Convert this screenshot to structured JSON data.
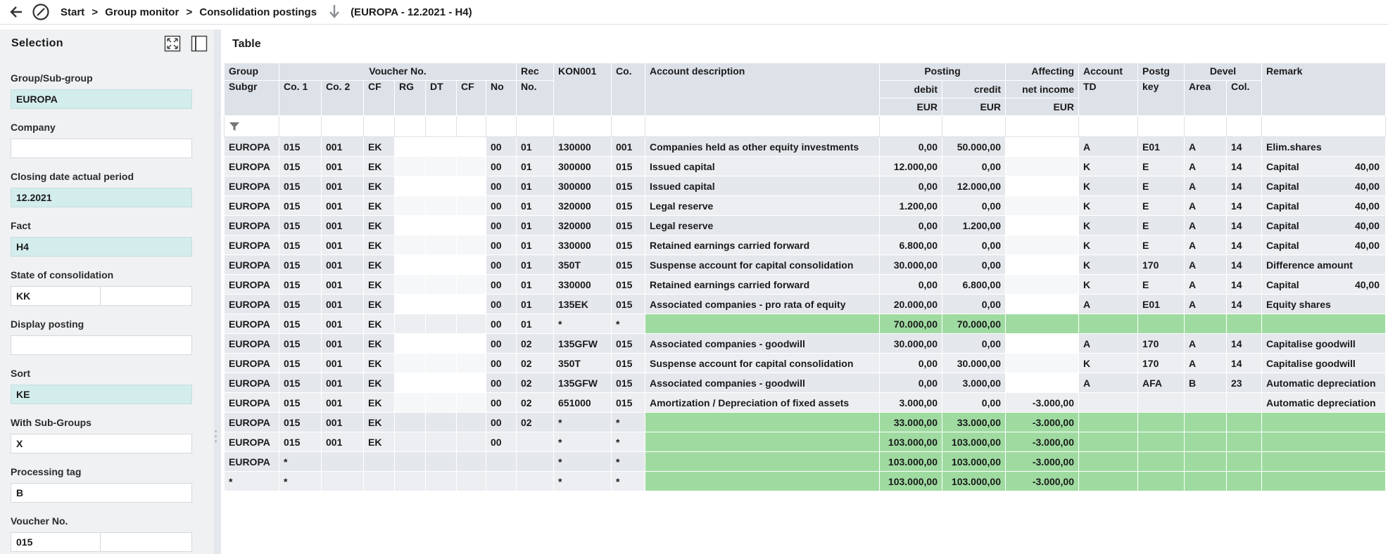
{
  "breadcrumb": {
    "items": [
      "Start",
      ">",
      "Group monitor",
      ">",
      "Consolidation postings"
    ],
    "context": "(EUROPA - 12.2021 - H4)"
  },
  "left_panel": {
    "title": "Selection",
    "fields": [
      {
        "label": "Group/Sub-group",
        "value": "EUROPA",
        "style": "teal"
      },
      {
        "label": "Company",
        "value": "",
        "style": "white"
      },
      {
        "label": "Closing date actual period",
        "value": "12.2021",
        "style": "teal"
      },
      {
        "label": "Fact",
        "value": "H4",
        "style": "teal"
      },
      {
        "label": "State of consolidation",
        "value": "KK",
        "value2": "",
        "style": "split"
      },
      {
        "label": "Display posting",
        "value": "",
        "style": "white"
      },
      {
        "label": "Sort",
        "value": "KE",
        "style": "teal"
      },
      {
        "label": "With Sub-Groups",
        "value": "X",
        "style": "white"
      },
      {
        "label": "Processing tag",
        "value": "B",
        "style": "white"
      },
      {
        "label": "Voucher No.",
        "value": "015",
        "value2": "",
        "style": "split"
      }
    ]
  },
  "main": {
    "title": "Table",
    "header": {
      "group": "Group",
      "subgr": "Subgr",
      "voucher": "Voucher No.",
      "co1": "Co. 1",
      "co2": "Co. 2",
      "cf1": "CF",
      "rg": "RG",
      "dt": "DT",
      "cf2": "CF",
      "no": "No",
      "rec": "Rec",
      "recno": "No.",
      "kon": "KON001",
      "co": "Co.",
      "desc": "Account description",
      "posting": "Posting",
      "debit": "debit",
      "credit": "credit",
      "eur1": "EUR",
      "eur2": "EUR",
      "affecting": "Affecting",
      "netincome": "net income",
      "eur3": "EUR",
      "account": "Account",
      "td": "TD",
      "postg": "Postg",
      "key": "key",
      "devel": "Devel",
      "area": "Area",
      "col": "Col.",
      "remark": "Remark"
    },
    "rows": [
      {
        "type": "d",
        "c": [
          "EUROPA",
          "015",
          "001",
          "EK",
          "",
          "",
          "",
          "00",
          "01",
          "130000",
          "001",
          "Companies held as other equity investments",
          "0,00",
          "50.000,00",
          "",
          "A",
          "E01",
          "A",
          "14",
          "Elim.shares",
          ""
        ]
      },
      {
        "type": "d",
        "c": [
          "EUROPA",
          "015",
          "001",
          "EK",
          "",
          "",
          "",
          "00",
          "01",
          "300000",
          "015",
          "Issued capital",
          "12.000,00",
          "0,00",
          "",
          "K",
          "E",
          "A",
          "14",
          "Capital",
          "40,00"
        ]
      },
      {
        "type": "d",
        "c": [
          "EUROPA",
          "015",
          "001",
          "EK",
          "",
          "",
          "",
          "00",
          "01",
          "300000",
          "015",
          "Issued capital",
          "0,00",
          "12.000,00",
          "",
          "K",
          "E",
          "A",
          "14",
          "Capital",
          "40,00"
        ]
      },
      {
        "type": "d",
        "c": [
          "EUROPA",
          "015",
          "001",
          "EK",
          "",
          "",
          "",
          "00",
          "01",
          "320000",
          "015",
          "Legal reserve",
          "1.200,00",
          "0,00",
          "",
          "K",
          "E",
          "A",
          "14",
          "Capital",
          "40,00"
        ]
      },
      {
        "type": "d",
        "c": [
          "EUROPA",
          "015",
          "001",
          "EK",
          "",
          "",
          "",
          "00",
          "01",
          "320000",
          "015",
          "Legal reserve",
          "0,00",
          "1.200,00",
          "",
          "K",
          "E",
          "A",
          "14",
          "Capital",
          "40,00"
        ]
      },
      {
        "type": "d",
        "c": [
          "EUROPA",
          "015",
          "001",
          "EK",
          "",
          "",
          "",
          "00",
          "01",
          "330000",
          "015",
          "Retained earnings carried forward",
          "6.800,00",
          "0,00",
          "",
          "K",
          "E",
          "A",
          "14",
          "Capital",
          "40,00"
        ]
      },
      {
        "type": "d",
        "c": [
          "EUROPA",
          "015",
          "001",
          "EK",
          "",
          "",
          "",
          "00",
          "01",
          "350T",
          "015",
          "Suspense account for capital consolidation",
          "30.000,00",
          "0,00",
          "",
          "K",
          "170",
          "A",
          "14",
          "Difference amount",
          ""
        ]
      },
      {
        "type": "d",
        "c": [
          "EUROPA",
          "015",
          "001",
          "EK",
          "",
          "",
          "",
          "00",
          "01",
          "330000",
          "015",
          "Retained earnings carried forward",
          "0,00",
          "6.800,00",
          "",
          "K",
          "E",
          "A",
          "14",
          "Capital",
          "40,00"
        ]
      },
      {
        "type": "d",
        "c": [
          "EUROPA",
          "015",
          "001",
          "EK",
          "",
          "",
          "",
          "00",
          "01",
          "135EK",
          "015",
          "Associated companies - pro rata of equity",
          "20.000,00",
          "0,00",
          "",
          "A",
          "E01",
          "A",
          "14",
          "Equity shares",
          ""
        ]
      },
      {
        "type": "s",
        "c": [
          "EUROPA",
          "015",
          "001",
          "EK",
          "",
          "",
          "",
          "00",
          "01",
          "*",
          "*",
          "",
          "70.000,00",
          "70.000,00",
          "",
          "",
          "",
          "",
          "",
          "",
          ""
        ]
      },
      {
        "type": "d",
        "c": [
          "EUROPA",
          "015",
          "001",
          "EK",
          "",
          "",
          "",
          "00",
          "02",
          "135GFW",
          "015",
          "Associated companies - goodwill",
          "30.000,00",
          "0,00",
          "",
          "A",
          "170",
          "A",
          "14",
          "Capitalise goodwill",
          ""
        ]
      },
      {
        "type": "d",
        "c": [
          "EUROPA",
          "015",
          "001",
          "EK",
          "",
          "",
          "",
          "00",
          "02",
          "350T",
          "015",
          "Suspense account for capital consolidation",
          "0,00",
          "30.000,00",
          "",
          "K",
          "170",
          "A",
          "14",
          "Capitalise goodwill",
          ""
        ]
      },
      {
        "type": "d",
        "c": [
          "EUROPA",
          "015",
          "001",
          "EK",
          "",
          "",
          "",
          "00",
          "02",
          "135GFW",
          "015",
          "Associated companies - goodwill",
          "0,00",
          "3.000,00",
          "",
          "A",
          "AFA",
          "B",
          "23",
          "Automatic depreciation",
          ""
        ]
      },
      {
        "type": "d",
        "c": [
          "EUROPA",
          "015",
          "001",
          "EK",
          "",
          "",
          "",
          "00",
          "02",
          "651000",
          "015",
          "Amortization / Depreciation of fixed assets",
          "3.000,00",
          "0,00",
          "-3.000,00",
          "",
          "",
          "",
          "",
          "Automatic depreciation",
          ""
        ]
      },
      {
        "type": "s",
        "c": [
          "EUROPA",
          "015",
          "001",
          "EK",
          "",
          "",
          "",
          "00",
          "02",
          "*",
          "*",
          "",
          "33.000,00",
          "33.000,00",
          "-3.000,00",
          "",
          "",
          "",
          "",
          "",
          ""
        ]
      },
      {
        "type": "s",
        "c": [
          "EUROPA",
          "015",
          "001",
          "EK",
          "",
          "",
          "",
          "00",
          "",
          "*",
          "*",
          "",
          "103.000,00",
          "103.000,00",
          "-3.000,00",
          "",
          "",
          "",
          "",
          "",
          ""
        ]
      },
      {
        "type": "s",
        "c": [
          "EUROPA",
          "*",
          "",
          "",
          "",
          "",
          "",
          "",
          "",
          "*",
          "*",
          "",
          "103.000,00",
          "103.000,00",
          "-3.000,00",
          "",
          "",
          "",
          "",
          "",
          ""
        ]
      },
      {
        "type": "s",
        "c": [
          "*",
          "*",
          "",
          "",
          "",
          "",
          "",
          "",
          "",
          "*",
          "*",
          "",
          "103.000,00",
          "103.000,00",
          "-3.000,00",
          "",
          "",
          "",
          "",
          "",
          ""
        ]
      }
    ]
  },
  "colors": {
    "teal_field": "#d3ecec",
    "sum_green": "#9fdba1",
    "header_bg": "#dde1e8"
  },
  "icons": [
    "back-arrow-icon",
    "no-entry-icon",
    "download-arrow-icon",
    "expand-icon",
    "side-panel-icon",
    "filter-icon"
  ]
}
